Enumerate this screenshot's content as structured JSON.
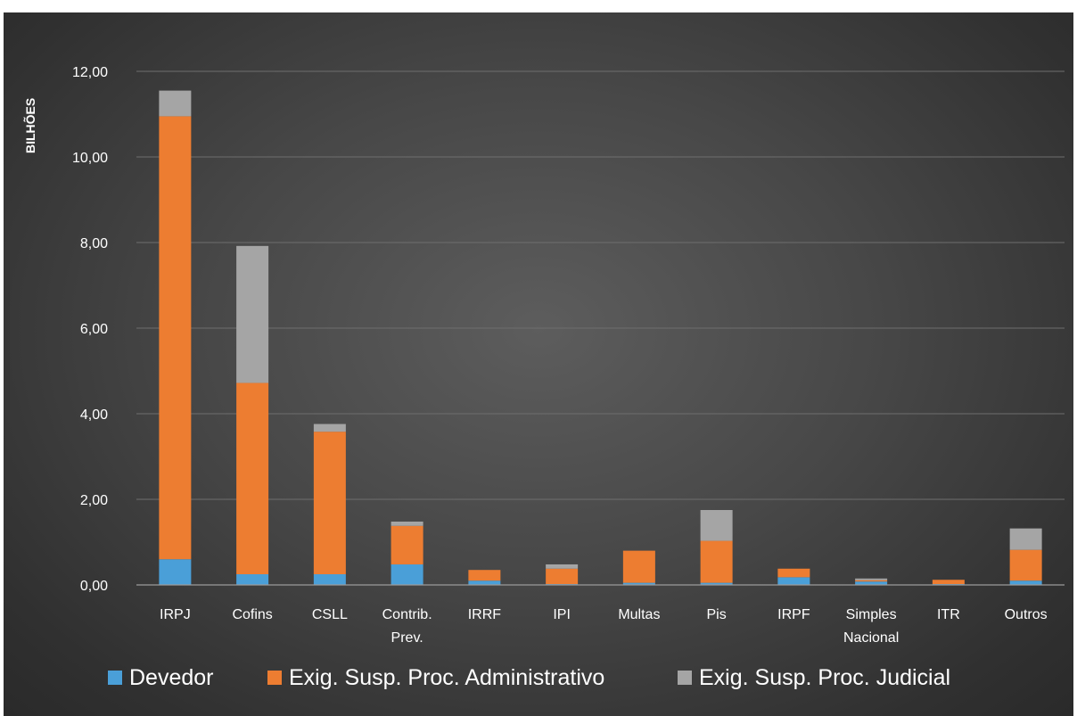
{
  "chart_data": {
    "type": "bar",
    "stacked": true,
    "ylabel": "BILHÕES",
    "ylim": [
      0,
      12
    ],
    "ytick_values": [
      0,
      2,
      4,
      6,
      8,
      10,
      12
    ],
    "ytick_labels": [
      "0,00",
      "2,00",
      "4,00",
      "6,00",
      "8,00",
      "10,00",
      "12,00"
    ],
    "grid": true,
    "legend_position": "bottom",
    "categories": [
      [
        "IRPJ"
      ],
      [
        "Cofins"
      ],
      [
        "CSLL"
      ],
      [
        "Contrib.",
        "Prev."
      ],
      [
        "IRRF"
      ],
      [
        "IPI"
      ],
      [
        "Multas"
      ],
      [
        "Pis"
      ],
      [
        "IRPF"
      ],
      [
        "Simples",
        "Nacional"
      ],
      [
        "ITR"
      ],
      [
        "Outros"
      ]
    ],
    "series": [
      {
        "name": "Devedor",
        "color": "#4a9fd8",
        "values": [
          0.6,
          0.25,
          0.25,
          0.48,
          0.1,
          0.02,
          0.05,
          0.05,
          0.18,
          0.08,
          0.02,
          0.1
        ]
      },
      {
        "name": "Exig. Susp. Proc. Administrativo",
        "color": "#ed7d31",
        "values": [
          10.35,
          4.47,
          3.33,
          0.9,
          0.25,
          0.36,
          0.75,
          0.98,
          0.2,
          0.03,
          0.1,
          0.72
        ]
      },
      {
        "name": "Exig. Susp. Proc. Judicial",
        "color": "#a5a5a5",
        "values": [
          0.6,
          3.2,
          0.18,
          0.1,
          0.0,
          0.1,
          0.0,
          0.72,
          0.0,
          0.04,
          0.0,
          0.5
        ]
      }
    ]
  }
}
